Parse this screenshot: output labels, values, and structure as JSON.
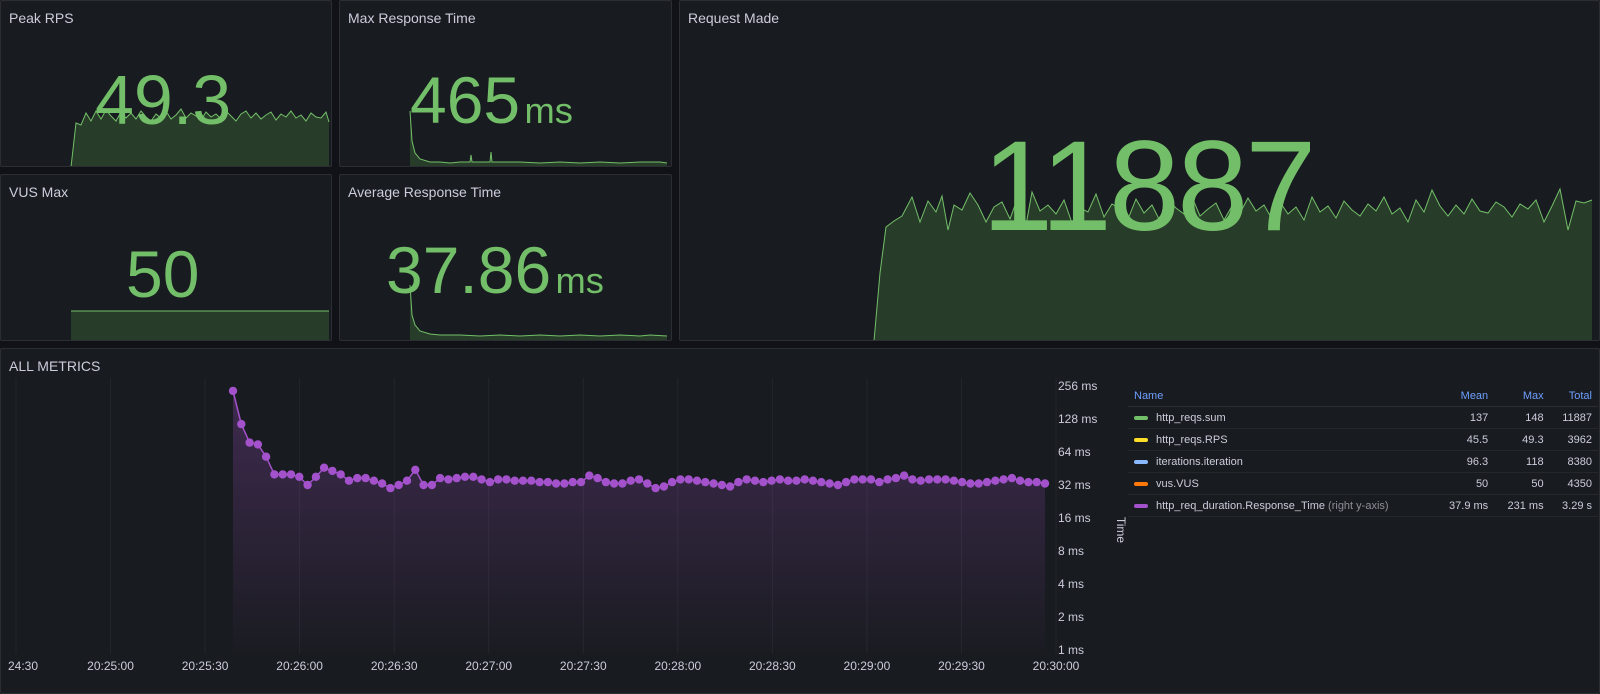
{
  "panels": {
    "peak_rps": {
      "title": "Peak RPS",
      "value": "49.3",
      "unit": ""
    },
    "max_response": {
      "title": "Max Response Time",
      "value": "465",
      "unit": "ms"
    },
    "vus_max": {
      "title": "VUS Max",
      "value": "50",
      "unit": ""
    },
    "avg_response": {
      "title": "Average Response Time",
      "value": "37.86",
      "unit": "ms"
    },
    "request_made": {
      "title": "Request Made",
      "value": "11887",
      "unit": ""
    }
  },
  "all_metrics": {
    "title": "ALL METRICS",
    "y_axis_title": "Time",
    "legend": {
      "headers": {
        "name": "Name",
        "mean": "Mean",
        "max": "Max",
        "total": "Total"
      },
      "rows": [
        {
          "name": "http_reqs.sum",
          "note": "",
          "mean": "137",
          "max": "148",
          "total": "11887",
          "color": "#73bf69"
        },
        {
          "name": "http_reqs.RPS",
          "note": "",
          "mean": "45.5",
          "max": "49.3",
          "total": "3962",
          "color": "#fade2a"
        },
        {
          "name": "iterations.iteration",
          "note": "",
          "mean": "96.3",
          "max": "118",
          "total": "8380",
          "color": "#8ab8ff"
        },
        {
          "name": "vus.VUS",
          "note": "",
          "mean": "50",
          "max": "50",
          "total": "4350",
          "color": "#ff780a"
        },
        {
          "name": "http_req_duration.Response_Time",
          "note": "(right y-axis)",
          "mean": "37.9 ms",
          "max": "231 ms",
          "total": "3.29 s",
          "color": "#a352cc"
        }
      ]
    }
  },
  "chart_data": {
    "type": "line",
    "y_scale": "log2",
    "y_ticks": [
      "256 ms",
      "128 ms",
      "64 ms",
      "32 ms",
      "16 ms",
      "8 ms",
      "4 ms",
      "2 ms",
      "1 ms"
    ],
    "x_ticks": [
      "24:30",
      "20:25:00",
      "20:25:30",
      "20:26:00",
      "20:26:30",
      "20:27:00",
      "20:27:30",
      "20:28:00",
      "20:28:30",
      "20:29:00",
      "20:29:30",
      "20:30:00"
    ],
    "series": [
      {
        "name": "http_req_duration.Response_Time",
        "color": "#a352cc",
        "values": [
          231,
          115,
          78,
          75,
          58,
          40,
          40,
          40,
          38,
          32,
          38,
          46,
          43,
          40,
          35,
          37,
          37,
          35,
          33,
          30,
          32,
          35,
          44,
          32,
          32,
          37,
          36,
          37,
          38,
          38,
          36,
          34,
          36,
          36,
          35,
          35,
          35,
          34,
          34,
          33,
          33,
          34,
          34,
          39,
          37,
          34,
          33,
          33,
          35,
          36,
          33,
          30,
          31,
          34,
          36,
          36,
          35,
          34,
          33,
          32,
          31,
          34,
          36,
          35,
          34,
          35,
          36,
          35,
          35,
          36,
          35,
          34,
          33,
          32,
          34,
          36,
          36,
          36,
          34,
          36,
          37,
          39,
          36,
          35,
          36,
          36,
          36,
          35,
          34,
          33,
          33,
          34,
          35,
          36,
          37,
          35,
          34,
          34,
          33
        ]
      }
    ]
  }
}
